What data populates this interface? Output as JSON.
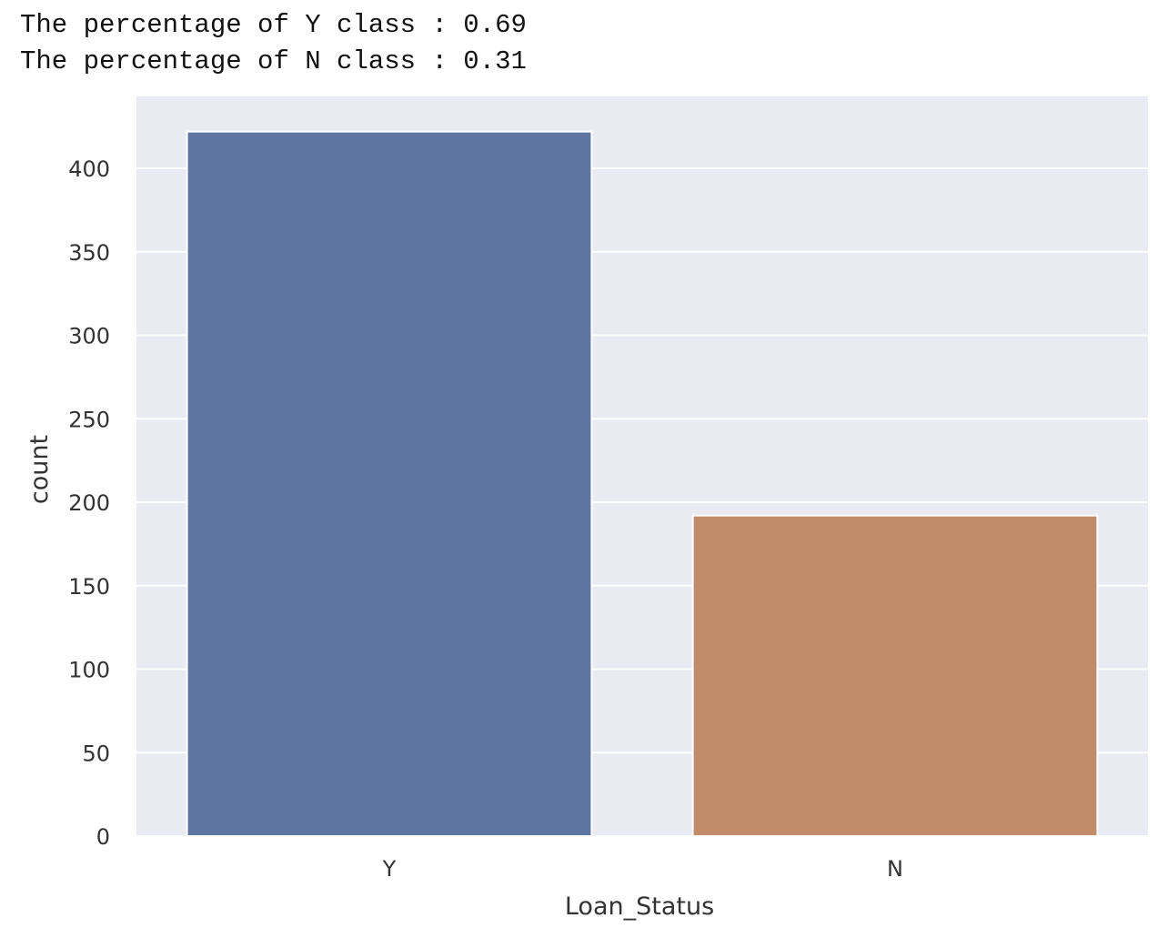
{
  "output": {
    "lines": [
      "The percentage of Y class : 0.69",
      "The percentage of N class : 0.31"
    ]
  },
  "chart_data": {
    "type": "bar",
    "title": "",
    "xlabel": "Loan_Status",
    "ylabel": "count",
    "categories": [
      "Y",
      "N"
    ],
    "values": [
      422,
      192
    ],
    "ylim": [
      0,
      440
    ],
    "yticks": [
      0,
      50,
      100,
      150,
      200,
      250,
      300,
      350,
      400
    ],
    "colors": [
      "#5d75a0",
      "#c28b69"
    ],
    "background": "#eaeaf2",
    "grid": true,
    "grid_color": "#ffffff",
    "legend": "none"
  }
}
